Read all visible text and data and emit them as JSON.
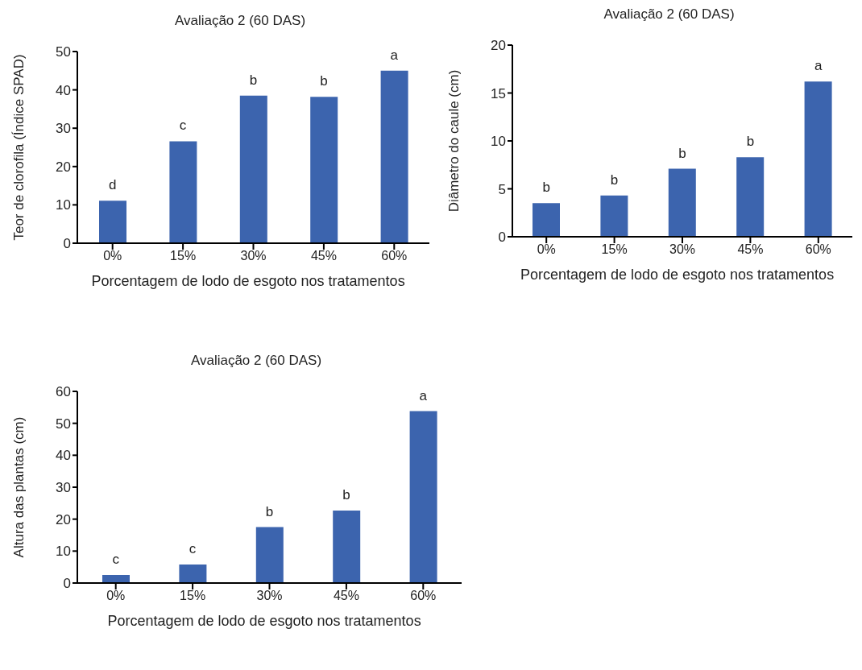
{
  "chart_data": [
    {
      "type": "bar",
      "title": "Avaliação 2 (60 DAS)",
      "xlabel": "Porcentagem de lodo de esgoto nos tratamentos",
      "ylabel": "Teor de clorofila (Índice SPAD)",
      "categories": [
        "0%",
        "15%",
        "30%",
        "45%",
        "60%"
      ],
      "values": [
        11.1,
        26.6,
        38.5,
        38.2,
        45.0
      ],
      "color": "#3c64ae",
      "ylim": [
        0,
        50
      ],
      "yticks": [
        0,
        10,
        20,
        30,
        40,
        50
      ],
      "annotations": [
        {
          "text": "d",
          "x": "0%",
          "y": 11.1
        },
        {
          "text": "c",
          "x": "15%",
          "y": 26.6
        },
        {
          "text": "b",
          "x": "30%",
          "y": 38.5
        },
        {
          "text": "b",
          "x": "45%",
          "y": 38.2
        },
        {
          "text": "a",
          "x": "60%",
          "y": 45.0
        }
      ]
    },
    {
      "type": "bar",
      "title": "Avaliação 2 (60 DAS)",
      "xlabel": "Porcentagem de lodo de esgoto nos tratamentos",
      "ylabel": "Diâmetro do caule (cm)",
      "categories": [
        "0%",
        "15%",
        "30%",
        "45%",
        "60%"
      ],
      "values": [
        3.5,
        4.3,
        7.1,
        8.3,
        16.2
      ],
      "color": "#3c64ae",
      "ylim": [
        0,
        20
      ],
      "yticks": [
        0,
        5,
        10,
        15,
        20
      ],
      "annotations": [
        {
          "text": "b",
          "x": "0%",
          "y": 3.5
        },
        {
          "text": "b",
          "x": "15%",
          "y": 4.3
        },
        {
          "text": "b",
          "x": "30%",
          "y": 7.1
        },
        {
          "text": "b",
          "x": "45%",
          "y": 8.3
        },
        {
          "text": "a",
          "x": "60%",
          "y": 16.2
        }
      ]
    },
    {
      "type": "bar",
      "title": "Avaliação 2 (60 DAS)",
      "xlabel": "Porcentagem de lodo de esgoto nos tratamentos",
      "ylabel": "Altura das plantas (cm)",
      "categories": [
        "0%",
        "15%",
        "30%",
        "45%",
        "60%"
      ],
      "values": [
        2.5,
        5.8,
        17.5,
        22.7,
        53.8
      ],
      "color": "#3c64ae",
      "ylim": [
        0,
        60
      ],
      "yticks": [
        0,
        10,
        20,
        30,
        40,
        50,
        60
      ],
      "annotations": [
        {
          "text": "c",
          "x": "0%",
          "y": 2.5
        },
        {
          "text": "c",
          "x": "15%",
          "y": 5.8
        },
        {
          "text": "b",
          "x": "30%",
          "y": 17.5
        },
        {
          "text": "b",
          "x": "45%",
          "y": 22.7
        },
        {
          "text": "a",
          "x": "60%",
          "y": 53.8
        }
      ]
    }
  ]
}
